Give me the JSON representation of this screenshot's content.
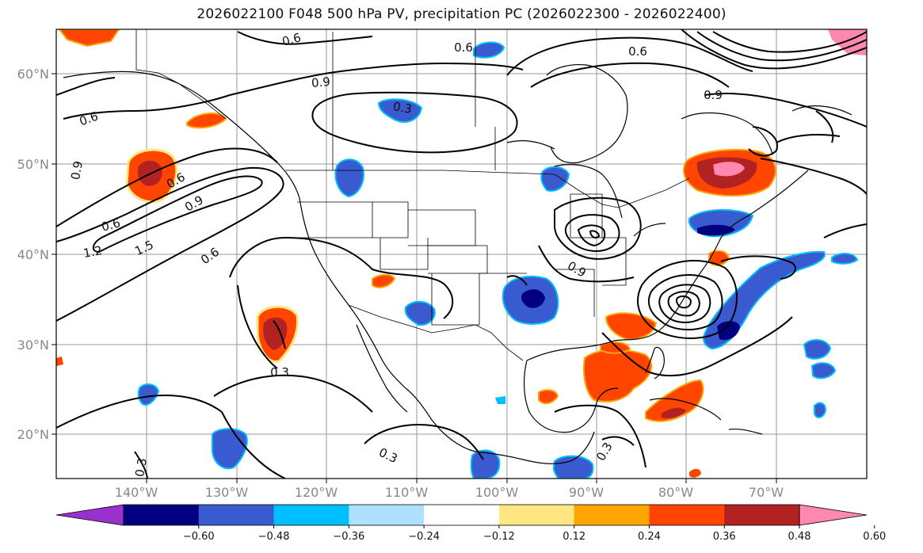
{
  "title": "2026022100 F048 500 hPa PV, precipitation PC (2026022300 - 2026022400)",
  "map": {
    "lat_labels": [
      "60°N",
      "50°N",
      "40°N",
      "30°N",
      "20°N"
    ],
    "lon_labels": [
      "140°W",
      "130°W",
      "120°W",
      "110°W",
      "100°W",
      "90°W",
      "80°W",
      "70°W"
    ],
    "contour_labels": [
      "0.6",
      "0.6",
      "0.9",
      "0.3",
      "0.6",
      "0.9",
      "0.6",
      "0.9",
      "0.9",
      "0.6",
      "1.2",
      "1.5",
      "0.6",
      "0.3",
      "0.9",
      "0.6",
      "0.3",
      "0.3",
      "0.3"
    ]
  },
  "colorbar": {
    "ticks": [
      "−0.60",
      "−0.48",
      "−0.36",
      "−0.24",
      "−0.12",
      "0.12",
      "0.24",
      "0.36",
      "0.48",
      "0.60"
    ],
    "colors": [
      "#9932cc",
      "#000080",
      "#3a5bd0",
      "#00bfff",
      "#b0e0ff",
      "#ffffff",
      "#ffe680",
      "#ffa500",
      "#ff4500",
      "#b22222",
      "#ff88b0"
    ]
  },
  "colors": {
    "neg_strong": "#000080",
    "neg_mid": "#3a5bd0",
    "neg_light": "#00bfff",
    "pos_light": "#ffe680",
    "pos_mid": "#ff4500",
    "pos_strong": "#b22222",
    "pos_max": "#ff88b0"
  }
}
